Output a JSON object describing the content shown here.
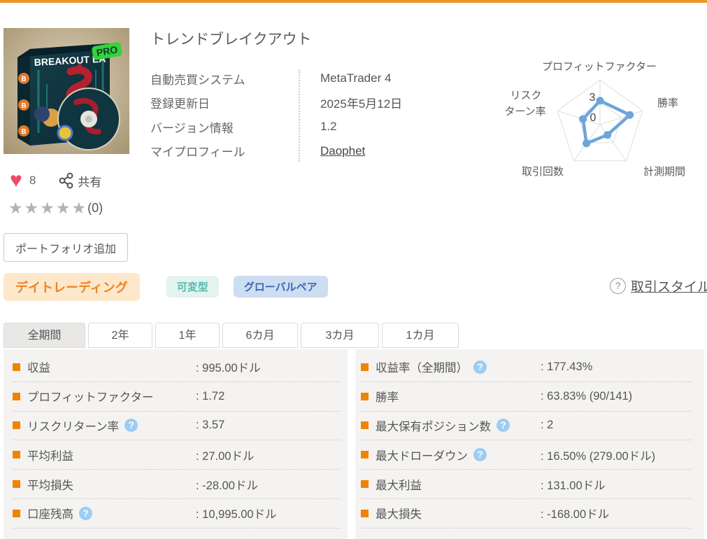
{
  "page": {
    "top_bar_color": "#ef9522"
  },
  "product": {
    "title": "トレンドブレイクアウト",
    "image": {
      "box_title": "BREAKOUT EA",
      "badge": "PRO",
      "coin_letter": "B"
    },
    "info": [
      {
        "label": "自動売買システム",
        "value": "MetaTrader 4",
        "link": false
      },
      {
        "label": "登録更新日",
        "value": "2025年5月12日",
        "link": false
      },
      {
        "label": "バージョン情報",
        "value": "1.2",
        "link": false
      },
      {
        "label": "マイプロフィール",
        "value": "Daophet",
        "link": true
      }
    ],
    "likes": "8",
    "share_label": "共有",
    "rating": {
      "stars": "★★★★★",
      "count_label": "(0)"
    },
    "portfolio_button": "ポートフォリオ追加"
  },
  "tags": [
    {
      "id": "day-trading",
      "label": "デイトレーディング",
      "color": "#ef8222",
      "bg": "#fde8cb"
    },
    {
      "id": "variable",
      "label": "可変型",
      "color": "#56b9ae",
      "bg": "#e3f3f0"
    },
    {
      "id": "global-pair",
      "label": "グローバルペア",
      "color": "#3e68b0",
      "bg": "#cdddf2"
    }
  ],
  "trade_style_link": {
    "help_icon": "?",
    "label": "取引スタイル"
  },
  "tabs": [
    {
      "id": "all",
      "label": "全期間",
      "active": true
    },
    {
      "id": "2y",
      "label": "2年",
      "active": false
    },
    {
      "id": "1y",
      "label": "1年",
      "active": false
    },
    {
      "id": "6m",
      "label": "6カ月",
      "active": false
    },
    {
      "id": "3m",
      "label": "3カ月",
      "active": false
    },
    {
      "id": "1m",
      "label": "1カ月",
      "active": false
    }
  ],
  "stats": {
    "left": [
      {
        "label": "収益",
        "help": false,
        "value": ": 995.00ドル"
      },
      {
        "label": "プロフィットファクター",
        "help": false,
        "value": ": 1.72"
      },
      {
        "label": "リスクリターン率",
        "help": true,
        "value": ": 3.57"
      },
      {
        "label": "平均利益",
        "help": false,
        "value": ": 27.00ドル"
      },
      {
        "label": "平均損失",
        "help": false,
        "value": ": -28.00ドル"
      },
      {
        "label": "口座残高",
        "help": true,
        "value": ": 10,995.00ドル"
      }
    ],
    "right": [
      {
        "label": "収益率（全期間）",
        "help": true,
        "value": ": 177.43%"
      },
      {
        "label": "勝率",
        "help": false,
        "value": ": 63.83% (90/141)"
      },
      {
        "label": "最大保有ポジション数",
        "help": true,
        "value": ": 2"
      },
      {
        "label": "最大ドローダウン",
        "help": true,
        "value": ": 16.50% (279.00ドル)"
      },
      {
        "label": "最大利益",
        "help": false,
        "value": ": 131.00ドル"
      },
      {
        "label": "最大損失",
        "help": false,
        "value": ": -168.00ドル"
      }
    ]
  },
  "chart_data": {
    "type": "radar",
    "axes": [
      "プロフィットファクター",
      "勝率",
      "計測期間",
      "取引回数",
      "リスク\nターン率"
    ],
    "values": [
      3.2,
      4.2,
      1.7,
      3.1,
      2.4
    ],
    "max": 6,
    "ticks": [
      {
        "label": "3",
        "frac": 0.5
      },
      {
        "label": "0",
        "frac": 0
      }
    ],
    "line_color": "#6ca5da",
    "grid_color": "#dedede",
    "label_color": "#5a5a5a",
    "legend": "none",
    "grid": "pentagon, rings at 0/3/6"
  }
}
